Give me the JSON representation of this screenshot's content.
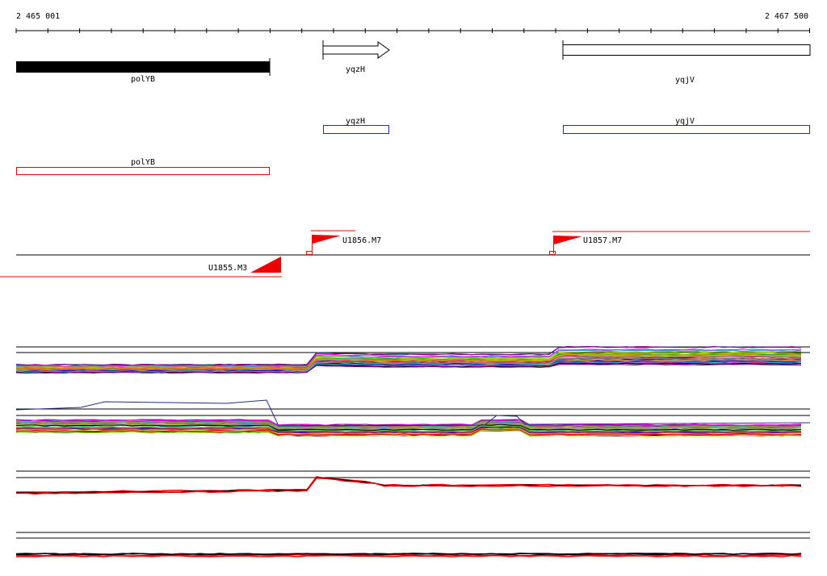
{
  "ruler": {
    "start": "2 465 001",
    "end": "2 467 500"
  },
  "genes": [
    {
      "label": "polYB"
    },
    {
      "label": "yqzH"
    },
    {
      "label": "yqjV"
    }
  ],
  "blue_track": [
    {
      "label": "yqzH"
    },
    {
      "label": "yqjV"
    }
  ],
  "red_track": [
    {
      "label": "polYB"
    }
  ],
  "transcripts": [
    {
      "label": "U1856.M7"
    },
    {
      "label": "U1857.M7"
    },
    {
      "label": "U1855.M3"
    }
  ]
}
